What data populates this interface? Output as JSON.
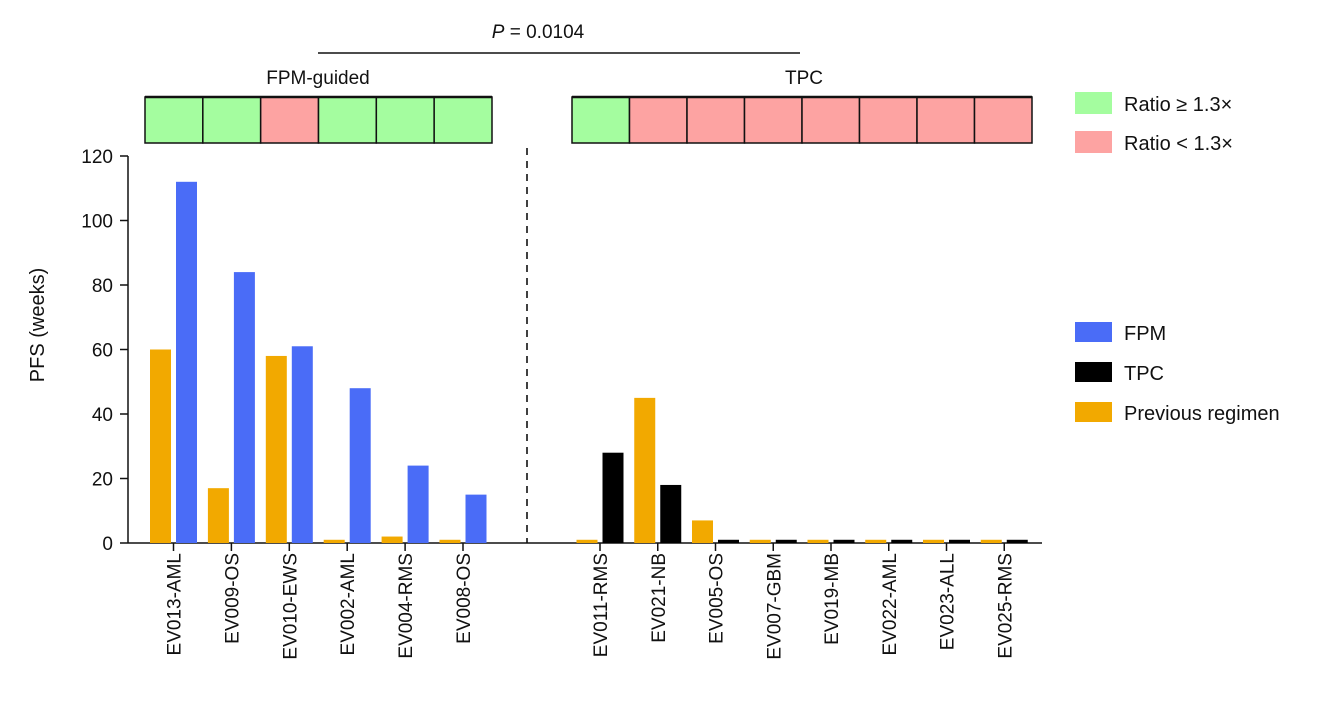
{
  "chart_data": {
    "type": "bar",
    "ylabel": "PFS (weeks)",
    "ylim": [
      0,
      120
    ],
    "yticks": [
      0,
      20,
      40,
      60,
      80,
      100,
      120
    ],
    "pvalue_prefix": "P",
    "pvalue_rest": " = 0.0104",
    "groups": [
      {
        "label": "FPM-guided",
        "categories": [
          "EV013-AML",
          "EV009-OS",
          "EV010-EWS",
          "EV002-AML",
          "EV004-RMS",
          "EV008-OS"
        ],
        "series": [
          {
            "name": "Previous regimen",
            "values": [
              60,
              17,
              58,
              1,
              2,
              1
            ]
          },
          {
            "name": "FPM",
            "values": [
              112,
              84,
              61,
              48,
              24,
              15
            ]
          }
        ],
        "ratio_status": [
          "ge",
          "ge",
          "lt",
          "ge",
          "ge",
          "ge"
        ]
      },
      {
        "label": "TPC",
        "categories": [
          "EV011-RMS",
          "EV021-NB",
          "EV005-OS",
          "EV007-GBM",
          "EV019-MB",
          "EV022-AML",
          "EV023-ALL",
          "EV025-RMS"
        ],
        "series": [
          {
            "name": "Previous regimen",
            "values": [
              1,
              45,
              7,
              1,
              1,
              1,
              1,
              1
            ]
          },
          {
            "name": "TPC",
            "values": [
              28,
              18,
              1,
              1,
              1,
              1,
              1,
              1
            ]
          }
        ],
        "ratio_status": [
          "ge",
          "lt",
          "lt",
          "lt",
          "lt",
          "lt",
          "lt",
          "lt"
        ]
      }
    ],
    "ratio_legend": [
      {
        "key": "ge",
        "label": "Ratio ≥ 1.3×",
        "color": "#a4fd9f"
      },
      {
        "key": "lt",
        "label": "Ratio < 1.3×",
        "color": "#fda3a2"
      }
    ],
    "series_legend": [
      {
        "name": "FPM",
        "color": "#4a6cf7"
      },
      {
        "name": "TPC",
        "color": "#000000"
      },
      {
        "name": "Previous regimen",
        "color": "#f2a900"
      }
    ]
  }
}
